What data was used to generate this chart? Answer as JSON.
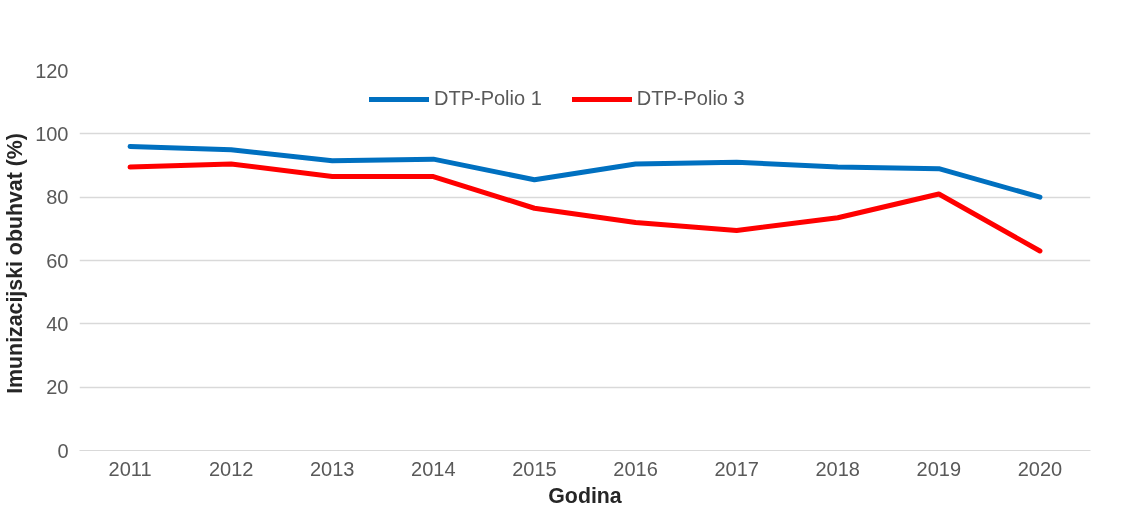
{
  "chart_data": {
    "type": "line",
    "xlabel": "Godina",
    "ylabel": "Imunizacijski  obuhvat (%)",
    "categories": [
      "2011",
      "2012",
      "2013",
      "2014",
      "2015",
      "2016",
      "2017",
      "2018",
      "2019",
      "2020"
    ],
    "series": [
      {
        "name": "DTP-Polio 1",
        "color": "#0070c0",
        "values": [
          96,
          95,
          91.5,
          92,
          85.5,
          90.5,
          91,
          89.5,
          89,
          80
        ]
      },
      {
        "name": "DTP-Polio 3",
        "color": "#ff0000",
        "values": [
          89.5,
          90.5,
          86.5,
          86.5,
          76.5,
          72,
          69.5,
          73.5,
          81,
          63
        ]
      }
    ],
    "ylim": [
      0,
      120
    ],
    "yticks": [
      0,
      20,
      40,
      60,
      80,
      100,
      120
    ],
    "grid": "y",
    "legend": "top",
    "marker": "none",
    "line_style": "solid"
  }
}
